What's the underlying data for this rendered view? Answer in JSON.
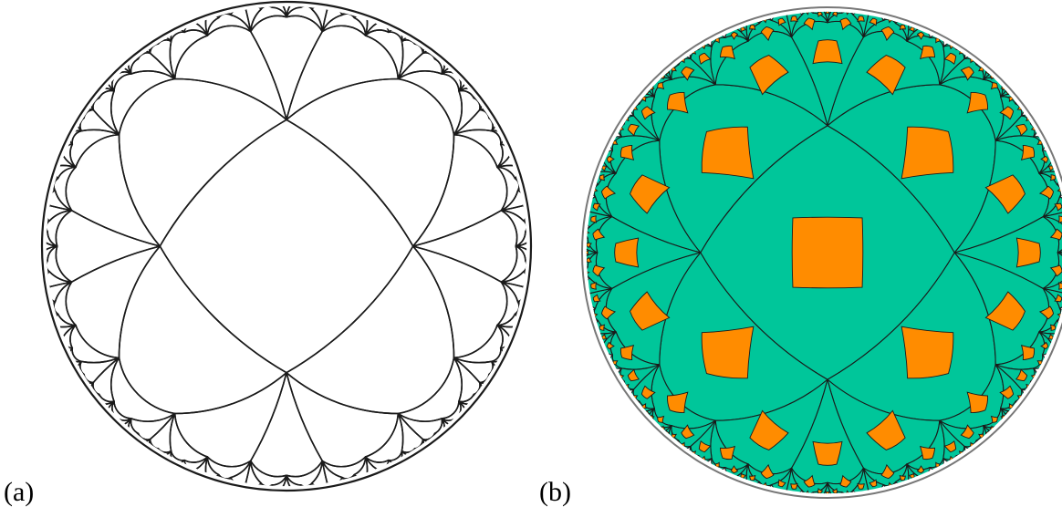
{
  "panels": [
    {
      "label": "(a)",
      "style": "outline",
      "stroke": "#1a1a1a"
    },
    {
      "label": "(b)",
      "style": "filled",
      "tile_color": "#00c69a",
      "diamond_color": "#ff8c00",
      "stroke": "#1a1a1a",
      "disk_stroke": "#777777"
    }
  ]
}
